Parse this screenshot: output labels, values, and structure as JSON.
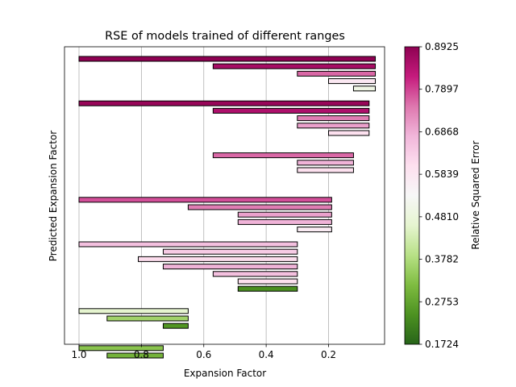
{
  "chart_data": {
    "type": "bar",
    "orientation": "horizontal",
    "title": "RSE of models trained of different ranges",
    "xlabel": "Expansion Factor",
    "ylabel": "Predicted Expansion Factor",
    "x_axis_inverted": true,
    "xlim": [
      1.05,
      0.05
    ],
    "x_ticks": [
      "1.0",
      "0.8",
      "0.6",
      "0.4",
      "0.2"
    ],
    "x_tick_values": [
      1.0,
      0.8,
      0.6,
      0.4,
      0.2
    ],
    "grid": "vertical",
    "y_ticks": "none",
    "colorbar": {
      "label": "Relative Squared Error",
      "colormap": "PiYG",
      "min": 0.1724,
      "max": 0.8925,
      "ticks": [
        "0.8925",
        "0.7897",
        "0.6868",
        "0.5839",
        "0.4810",
        "0.3782",
        "0.2753",
        "0.1724"
      ],
      "tick_values": [
        0.8925,
        0.7897,
        0.6868,
        0.5839,
        0.481,
        0.3782,
        0.2753,
        0.1724
      ]
    },
    "bars": [
      {
        "y": 0,
        "start": 1.0,
        "end": 0.05,
        "rse": 0.8925
      },
      {
        "y": 1,
        "start": 0.57,
        "end": 0.05,
        "rse": 0.86
      },
      {
        "y": 2,
        "start": 0.3,
        "end": 0.05,
        "rse": 0.76
      },
      {
        "y": 3,
        "start": 0.2,
        "end": 0.05,
        "rse": 0.58
      },
      {
        "y": 4,
        "start": 0.12,
        "end": 0.05,
        "rse": 0.5
      },
      {
        "y": 6,
        "start": 1.0,
        "end": 0.07,
        "rse": 0.88
      },
      {
        "y": 7,
        "start": 0.57,
        "end": 0.07,
        "rse": 0.85
      },
      {
        "y": 8,
        "start": 0.3,
        "end": 0.07,
        "rse": 0.74
      },
      {
        "y": 9,
        "start": 0.3,
        "end": 0.07,
        "rse": 0.7
      },
      {
        "y": 10,
        "start": 0.2,
        "end": 0.07,
        "rse": 0.6
      },
      {
        "y": 13,
        "start": 0.57,
        "end": 0.12,
        "rse": 0.76
      },
      {
        "y": 14,
        "start": 0.3,
        "end": 0.12,
        "rse": 0.68
      },
      {
        "y": 15,
        "start": 0.3,
        "end": 0.12,
        "rse": 0.6
      },
      {
        "y": 19,
        "start": 1.0,
        "end": 0.19,
        "rse": 0.78
      },
      {
        "y": 20,
        "start": 0.65,
        "end": 0.19,
        "rse": 0.74
      },
      {
        "y": 21,
        "start": 0.49,
        "end": 0.19,
        "rse": 0.7
      },
      {
        "y": 22,
        "start": 0.49,
        "end": 0.19,
        "rse": 0.68
      },
      {
        "y": 23,
        "start": 0.3,
        "end": 0.19,
        "rse": 0.57
      },
      {
        "y": 25,
        "start": 1.0,
        "end": 0.3,
        "rse": 0.66
      },
      {
        "y": 26,
        "start": 0.73,
        "end": 0.3,
        "rse": 0.64
      },
      {
        "y": 27,
        "start": 0.81,
        "end": 0.3,
        "rse": 0.61
      },
      {
        "y": 28,
        "start": 0.73,
        "end": 0.3,
        "rse": 0.68
      },
      {
        "y": 29,
        "start": 0.57,
        "end": 0.3,
        "rse": 0.66
      },
      {
        "y": 30,
        "start": 0.49,
        "end": 0.3,
        "rse": 0.6
      },
      {
        "y": 31,
        "start": 0.49,
        "end": 0.3,
        "rse": 0.24
      },
      {
        "y": 34,
        "start": 1.0,
        "end": 0.65,
        "rse": 0.46
      },
      {
        "y": 35,
        "start": 0.91,
        "end": 0.65,
        "rse": 0.36
      },
      {
        "y": 36,
        "start": 0.73,
        "end": 0.65,
        "rse": 0.25
      },
      {
        "y": 39,
        "start": 1.0,
        "end": 0.73,
        "rse": 0.33
      },
      {
        "y": 40,
        "start": 0.91,
        "end": 0.73,
        "rse": 0.3
      }
    ]
  }
}
